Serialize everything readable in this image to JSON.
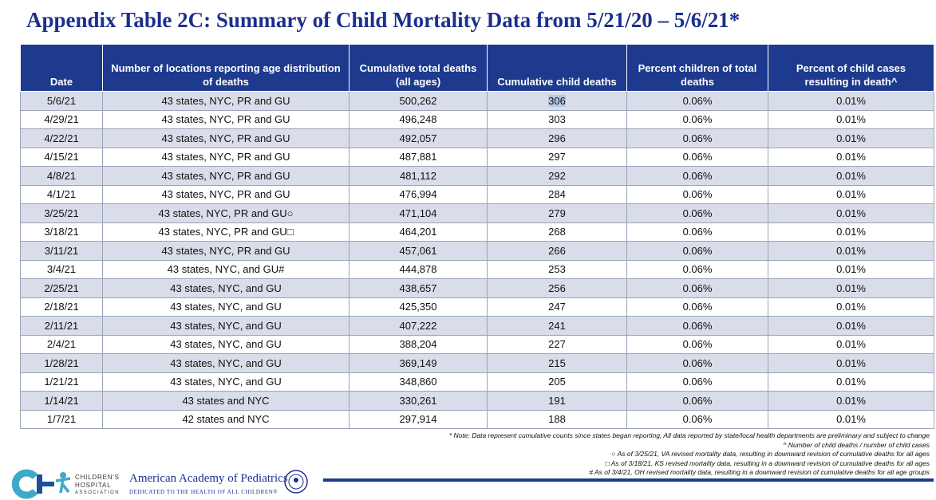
{
  "title": "Appendix Table 2C: Summary of Child Mortality Data from 5/21/20 – 5/6/21*",
  "table": {
    "columns": [
      "Date",
      "Number of locations reporting age distribution of deaths",
      "Cumulative total deaths (all ages)",
      "Cumulative child deaths",
      "Percent children of total deaths",
      "Percent of child cases resulting in death^"
    ],
    "rows": [
      [
        "5/6/21",
        "43 states, NYC, PR and GU",
        "500,262",
        "306",
        "0.06%",
        "0.01%"
      ],
      [
        "4/29/21",
        "43 states, NYC, PR and GU",
        "496,248",
        "303",
        "0.06%",
        "0.01%"
      ],
      [
        "4/22/21",
        "43 states, NYC, PR and GU",
        "492,057",
        "296",
        "0.06%",
        "0.01%"
      ],
      [
        "4/15/21",
        "43 states, NYC, PR and GU",
        "487,881",
        "297",
        "0.06%",
        "0.01%"
      ],
      [
        "4/8/21",
        "43 states, NYC, PR and GU",
        "481,112",
        "292",
        "0.06%",
        "0.01%"
      ],
      [
        "4/1/21",
        "43 states, NYC, PR and GU",
        "476,994",
        "284",
        "0.06%",
        "0.01%"
      ],
      [
        "3/25/21",
        "43 states, NYC, PR and GU○",
        "471,104",
        "279",
        "0.06%",
        "0.01%"
      ],
      [
        "3/18/21",
        "43 states, NYC, PR and GU□",
        "464,201",
        "268",
        "0.06%",
        "0.01%"
      ],
      [
        "3/11/21",
        "43 states, NYC, PR and GU",
        "457,061",
        "266",
        "0.06%",
        "0.01%"
      ],
      [
        "3/4/21",
        "43 states, NYC, and GU#",
        "444,878",
        "253",
        "0.06%",
        "0.01%"
      ],
      [
        "2/25/21",
        "43 states, NYC, and GU",
        "438,657",
        "256",
        "0.06%",
        "0.01%"
      ],
      [
        "2/18/21",
        "43 states, NYC, and GU",
        "425,350",
        "247",
        "0.06%",
        "0.01%"
      ],
      [
        "2/11/21",
        "43 states, NYC, and GU",
        "407,222",
        "241",
        "0.06%",
        "0.01%"
      ],
      [
        "2/4/21",
        "43 states, NYC, and GU",
        "388,204",
        "227",
        "0.06%",
        "0.01%"
      ],
      [
        "1/28/21",
        "43 states, NYC, and GU",
        "369,149",
        "215",
        "0.06%",
        "0.01%"
      ],
      [
        "1/21/21",
        "43 states, NYC, and GU",
        "348,860",
        "205",
        "0.06%",
        "0.01%"
      ],
      [
        "1/14/21",
        "43 states and NYC",
        "330,261",
        "191",
        "0.06%",
        "0.01%"
      ],
      [
        "1/7/21",
        "42 states and NYC",
        "297,914",
        "188",
        "0.06%",
        "0.01%"
      ]
    ]
  },
  "notes": [
    "* Note: Data represent cumulative counts since states began reporting; All data reported by state/local health departments are preliminary and subject to change",
    "^ Number of child deaths / number of child cases",
    "○ As of 3/25/21, VA revised mortality data, resulting in downward revision of cumulative deaths for all ages",
    "□ As of 3/18/21, KS revised mortality data, resulting in a downward revision of cumulative deaths for all ages",
    "# As of 3/4/21, OH revised mortality data, resulting in a downward revision of cumulative deaths for all age groups"
  ],
  "footer": {
    "cha": [
      "CHILDREN'S",
      "HOSPITAL",
      "ASSOCIATION"
    ],
    "aap_name": "American Academy of Pediatrics",
    "aap_tagline": "DEDICATED TO THE HEALTH OF ALL CHILDREN®"
  }
}
